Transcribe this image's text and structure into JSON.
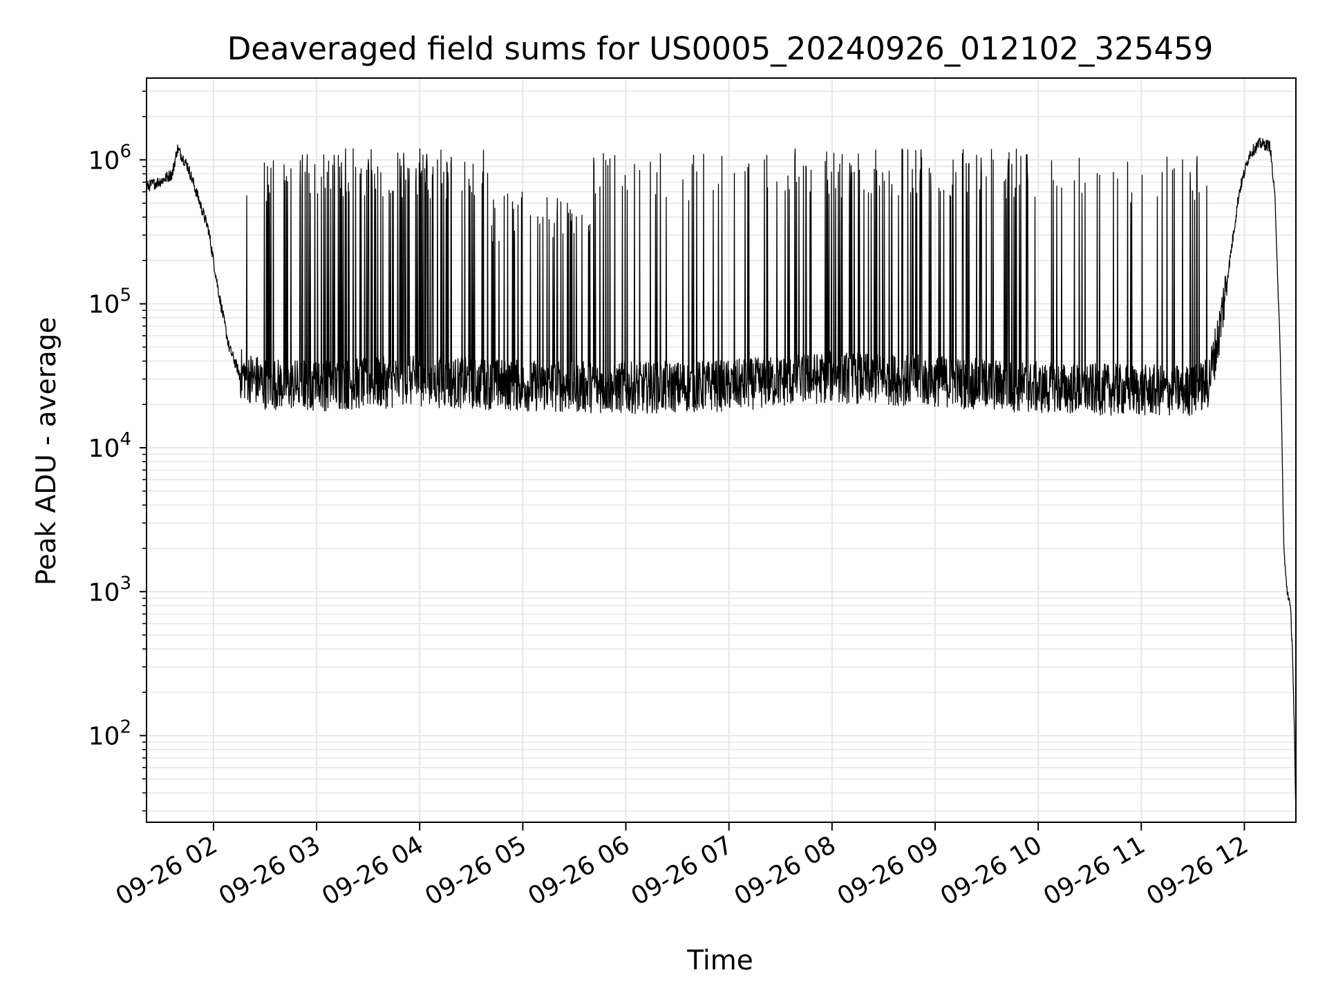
{
  "chart_data": {
    "type": "line",
    "title": "Deaveraged field sums for US0005_20240926_012102_325459",
    "xlabel": "Time",
    "ylabel": "Peak ADU - average",
    "yscale": "log",
    "grid": true,
    "grid_minor": true,
    "line_color": "#000000",
    "grid_color": "#e6e6e6",
    "xlim": [
      "2024-09-26 01:21",
      "2024-09-26 12:30"
    ],
    "ylim": [
      25,
      3700000
    ],
    "x_ticks": [
      "2024-09-26 02:00",
      "2024-09-26 03:00",
      "2024-09-26 04:00",
      "2024-09-26 05:00",
      "2024-09-26 06:00",
      "2024-09-26 07:00",
      "2024-09-26 08:00",
      "2024-09-26 09:00",
      "2024-09-26 10:00",
      "2024-09-26 11:00",
      "2024-09-26 12:00"
    ],
    "x_tick_labels": [
      "09-26 02",
      "09-26 03",
      "09-26 04",
      "09-26 05",
      "09-26 06",
      "09-26 07",
      "09-26 08",
      "09-26 09",
      "09-26 10",
      "09-26 11",
      "09-26 12"
    ],
    "y_ticks": [
      {
        "value": 100,
        "base": "10",
        "exp": "2"
      },
      {
        "value": 1000,
        "base": "10",
        "exp": "3"
      },
      {
        "value": 10000,
        "base": "10",
        "exp": "4"
      },
      {
        "value": 100000,
        "base": "10",
        "exp": "5"
      },
      {
        "value": 1000000,
        "base": "10",
        "exp": "6"
      }
    ],
    "series": [
      {
        "baseline": {
          "x": [
            "2024-09-26 01:21",
            "2024-09-26 01:30",
            "2024-09-26 01:36",
            "2024-09-26 01:39",
            "2024-09-26 01:45",
            "2024-09-26 01:51",
            "2024-09-26 01:57",
            "2024-09-26 02:03",
            "2024-09-26 02:09",
            "2024-09-26 02:15",
            "2024-09-26 02:30",
            "2024-09-26 03:00",
            "2024-09-26 04:00",
            "2024-09-26 05:00",
            "2024-09-26 06:00",
            "2024-09-26 07:00",
            "2024-09-26 08:00",
            "2024-09-26 09:00",
            "2024-09-26 10:00",
            "2024-09-26 11:00",
            "2024-09-26 11:30",
            "2024-09-26 11:39",
            "2024-09-26 11:45",
            "2024-09-26 11:51",
            "2024-09-26 11:57",
            "2024-09-26 12:03",
            "2024-09-26 12:09",
            "2024-09-26 12:15",
            "2024-09-26 12:18",
            "2024-09-26 12:21",
            "2024-09-26 12:23",
            "2024-09-26 12:24",
            "2024-09-26 12:25",
            "2024-09-26 12:26",
            "2024-09-26 12:27",
            "2024-09-26 12:28",
            "2024-09-26 12:29",
            "2024-09-26 12:30"
          ],
          "y": [
            650000,
            720000,
            800000,
            1200000,
            900000,
            550000,
            330000,
            120000,
            50000,
            33000,
            28000,
            27000,
            29000,
            27000,
            26000,
            27000,
            31000,
            29000,
            26000,
            25000,
            25000,
            28000,
            60000,
            180000,
            600000,
            1100000,
            1300000,
            1250000,
            500000,
            40000,
            2000,
            1300,
            1000,
            900,
            700,
            400,
            120,
            25
          ]
        },
        "spike_clusters": [
          {
            "x_start": "2024-09-26 02:15",
            "x_end": "2024-09-26 02:40",
            "count": 8,
            "peak": 1150000
          },
          {
            "x_start": "2024-09-26 02:40",
            "x_end": "2024-09-26 04:40",
            "count": 120,
            "peak": 1200000
          },
          {
            "x_start": "2024-09-26 04:40",
            "x_end": "2024-09-26 05:40",
            "count": 40,
            "peak": 600000
          },
          {
            "x_start": "2024-09-26 05:40",
            "x_end": "2024-09-26 07:10",
            "count": 30,
            "peak": 1150000
          },
          {
            "x_start": "2024-09-26 07:10",
            "x_end": "2024-09-26 10:00",
            "count": 110,
            "peak": 1200000
          },
          {
            "x_start": "2024-09-26 10:00",
            "x_end": "2024-09-26 11:40",
            "count": 30,
            "peak": 1100000
          }
        ]
      }
    ]
  }
}
